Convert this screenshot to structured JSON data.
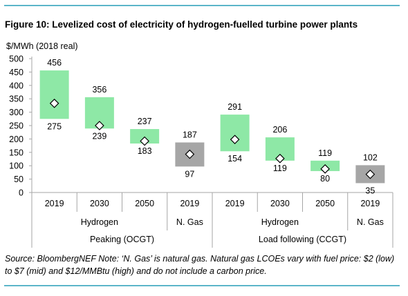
{
  "title": "Figure 10: Levelized cost of electricity of hydrogen-fuelled turbine power plants",
  "source": "Source: BloombergNEF Note: ‘N. Gas’ is natural gas. Natural gas LCOEs vary with fuel price: $2 (low) to $7 (mid) and $12/MMBtu (high) and do not include a carbon price.",
  "colors": {
    "hydrogen": "#8ee8a6",
    "ngas": "#a6a6a6",
    "rule": "#5bb5c9",
    "axis": "#a6a6a6"
  },
  "chart_data": {
    "type": "floating-bar",
    "ylabel": "$/MWh (2018 real)",
    "ylim": [
      0,
      500
    ],
    "yticks": [
      0,
      50,
      100,
      150,
      200,
      250,
      300,
      350,
      400,
      450,
      500
    ],
    "grid": false,
    "x_level1": [
      "2019",
      "2030",
      "2050",
      "2019",
      "2019",
      "2030",
      "2050",
      "2019"
    ],
    "x_level2": [
      {
        "label": "Hydrogen",
        "span": [
          0,
          2
        ]
      },
      {
        "label": "N. Gas",
        "span": [
          3,
          3
        ]
      },
      {
        "label": "Hydrogen",
        "span": [
          4,
          6
        ]
      },
      {
        "label": "N. Gas",
        "span": [
          7,
          7
        ]
      }
    ],
    "x_level3": [
      {
        "label": "Peaking (OCGT)",
        "span": [
          0,
          3
        ]
      },
      {
        "label": "Load following (CCGT)",
        "span": [
          4,
          7
        ]
      }
    ],
    "bars": [
      {
        "fuel": "hydrogen",
        "high": 456,
        "low": 275,
        "mid": 333
      },
      {
        "fuel": "hydrogen",
        "high": 356,
        "low": 239,
        "mid": 250
      },
      {
        "fuel": "hydrogen",
        "high": 237,
        "low": 183,
        "mid": 192
      },
      {
        "fuel": "ngas",
        "high": 187,
        "low": 97,
        "mid": 143
      },
      {
        "fuel": "hydrogen",
        "high": 291,
        "low": 154,
        "mid": 198
      },
      {
        "fuel": "hydrogen",
        "high": 206,
        "low": 119,
        "mid": 127
      },
      {
        "fuel": "hydrogen",
        "high": 119,
        "low": 80,
        "mid": 88
      },
      {
        "fuel": "ngas",
        "high": 102,
        "low": 35,
        "mid": 68
      }
    ]
  }
}
